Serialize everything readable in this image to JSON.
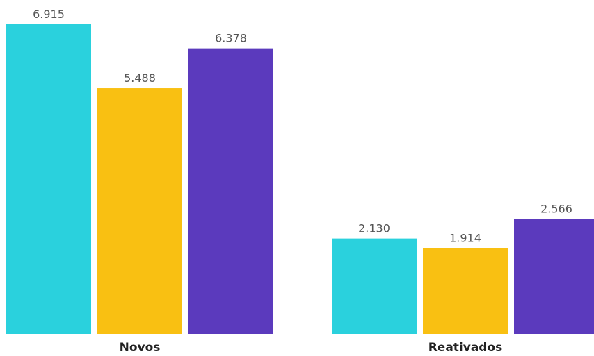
{
  "chart_data": {
    "type": "bar",
    "categories": [
      "Novos",
      "Reativados"
    ],
    "series": [
      {
        "values": [
          6915,
          2130
        ],
        "labels": [
          "6.915",
          "2.130"
        ],
        "color": "#2ad1dd"
      },
      {
        "values": [
          5488,
          1914
        ],
        "labels": [
          "5.488",
          "1.914"
        ],
        "color": "#f9c012"
      },
      {
        "values": [
          6378,
          2566
        ],
        "labels": [
          "6.378",
          "2.566"
        ],
        "color": "#5b3abd"
      }
    ],
    "title": "",
    "xlabel": "",
    "ylabel": "",
    "ylim": [
      0,
      6915
    ],
    "grid": false,
    "legend": "none"
  }
}
